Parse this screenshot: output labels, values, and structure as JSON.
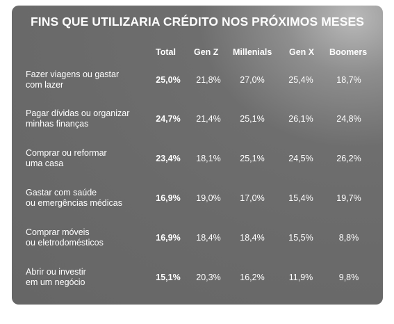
{
  "title": "FINS QUE UTILIZARIA CRÉDITO NOS PRÓXIMOS MESES",
  "columns": [
    "Total",
    "Gen Z",
    "Millenials",
    "Gen X",
    "Boomers"
  ],
  "rows": [
    {
      "label_line1": "Fazer viagens ou gastar",
      "label_line2": "com lazer",
      "values": [
        "25,0%",
        "21,8%",
        "27,0%",
        "25,4%",
        "18,7%"
      ]
    },
    {
      "label_line1": "Pagar dívidas ou organizar",
      "label_line2": "minhas finanças",
      "values": [
        "24,7%",
        "21,4%",
        "25,1%",
        "26,1%",
        "24,8%"
      ]
    },
    {
      "label_line1": "Comprar ou reformar",
      "label_line2": "uma casa",
      "values": [
        "23,4%",
        "18,1%",
        "25,1%",
        "24,5%",
        "26,2%"
      ]
    },
    {
      "label_line1": "Gastar com saúde",
      "label_line2": "ou emergências médicas",
      "values": [
        "16,9%",
        "19,0%",
        "17,0%",
        "15,4%",
        "19,7%"
      ]
    },
    {
      "label_line1": "Comprar móveis",
      "label_line2": "ou eletrodomésticos",
      "values": [
        "16,9%",
        "18,4%",
        "18,4%",
        "15,5%",
        "8,8%"
      ]
    },
    {
      "label_line1": "Abrir ou investir",
      "label_line2": "em um negócio",
      "values": [
        "15,1%",
        "20,3%",
        "16,2%",
        "11,9%",
        "9,8%"
      ]
    }
  ]
}
